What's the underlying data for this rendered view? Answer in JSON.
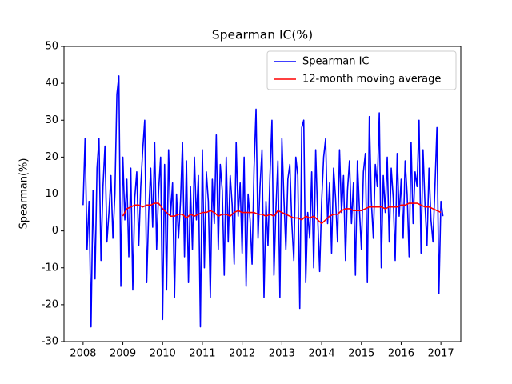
{
  "chart_data": {
    "type": "line",
    "title": "Spearman IC(%)",
    "y_label": "Spearman(%)",
    "xlim": [
      2007.52,
      2017.5
    ],
    "xticks": [
      2008,
      2009,
      2010,
      2011,
      2012,
      2013,
      2014,
      2015,
      2016,
      2017
    ],
    "ylim": [
      -30,
      50
    ],
    "yticks": [
      -30,
      -20,
      -10,
      0,
      10,
      20,
      30,
      40,
      50
    ],
    "grid": false,
    "legend": "upper right",
    "series": [
      {
        "name": "Spearman IC",
        "color": "#0000ff",
        "x": [
          2008.0,
          2008.05,
          2008.1,
          2008.15,
          2008.2,
          2008.25,
          2008.3,
          2008.35,
          2008.4,
          2008.45,
          2008.5,
          2008.55,
          2008.6,
          2008.65,
          2008.7,
          2008.75,
          2008.8,
          2008.85,
          2008.9,
          2008.95,
          2009.0,
          2009.05,
          2009.1,
          2009.15,
          2009.2,
          2009.25,
          2009.3,
          2009.35,
          2009.4,
          2009.45,
          2009.5,
          2009.55,
          2009.6,
          2009.65,
          2009.7,
          2009.75,
          2009.8,
          2009.85,
          2009.9,
          2009.95,
          2010.0,
          2010.05,
          2010.1,
          2010.15,
          2010.2,
          2010.25,
          2010.3,
          2010.35,
          2010.4,
          2010.45,
          2010.5,
          2010.55,
          2010.6,
          2010.65,
          2010.7,
          2010.75,
          2010.8,
          2010.85,
          2010.9,
          2010.95,
          2011.0,
          2011.05,
          2011.1,
          2011.15,
          2011.2,
          2011.25,
          2011.3,
          2011.35,
          2011.4,
          2011.45,
          2011.5,
          2011.55,
          2011.6,
          2011.65,
          2011.7,
          2011.75,
          2011.8,
          2011.85,
          2011.9,
          2011.95,
          2012.0,
          2012.05,
          2012.1,
          2012.15,
          2012.2,
          2012.25,
          2012.3,
          2012.35,
          2012.4,
          2012.45,
          2012.5,
          2012.55,
          2012.6,
          2012.65,
          2012.7,
          2012.75,
          2012.8,
          2012.85,
          2012.9,
          2012.95,
          2013.0,
          2013.05,
          2013.1,
          2013.15,
          2013.2,
          2013.25,
          2013.3,
          2013.35,
          2013.4,
          2013.45,
          2013.5,
          2013.55,
          2013.6,
          2013.65,
          2013.7,
          2013.75,
          2013.8,
          2013.85,
          2013.9,
          2013.95,
          2014.0,
          2014.05,
          2014.1,
          2014.15,
          2014.2,
          2014.25,
          2014.3,
          2014.35,
          2014.4,
          2014.45,
          2014.5,
          2014.55,
          2014.6,
          2014.65,
          2014.7,
          2014.75,
          2014.8,
          2014.85,
          2014.9,
          2014.95,
          2015.0,
          2015.05,
          2015.1,
          2015.15,
          2015.2,
          2015.25,
          2015.3,
          2015.35,
          2015.4,
          2015.45,
          2015.5,
          2015.55,
          2015.6,
          2015.65,
          2015.7,
          2015.75,
          2015.8,
          2015.85,
          2015.9,
          2015.95,
          2016.0,
          2016.05,
          2016.1,
          2016.15,
          2016.2,
          2016.25,
          2016.3,
          2016.35,
          2016.4,
          2016.45,
          2016.5,
          2016.55,
          2016.6,
          2016.65,
          2016.7,
          2016.75,
          2016.8,
          2016.85,
          2016.9,
          2016.95,
          2017.0,
          2017.05
        ],
        "values": [
          7,
          25,
          -5,
          8,
          -26,
          11,
          -13,
          17,
          25,
          -8,
          12,
          23,
          -3,
          5,
          15,
          -2,
          10,
          37,
          42,
          -15,
          20,
          3,
          14,
          -7,
          17,
          -16,
          9,
          16,
          -4,
          12,
          22,
          30,
          -14,
          5,
          17,
          1,
          24,
          -5,
          11,
          20,
          -24,
          18,
          -16,
          22,
          4,
          13,
          -18,
          10,
          -2,
          8,
          24,
          -7,
          19,
          -14,
          12,
          -5,
          20,
          3,
          15,
          -26,
          22,
          -10,
          16,
          8,
          -18,
          14,
          2,
          26,
          -5,
          18,
          11,
          -12,
          20,
          -3,
          15,
          7,
          -9,
          24,
          4,
          13,
          -6,
          20,
          -15,
          10,
          3,
          -9,
          17,
          33,
          -2,
          12,
          22,
          -18,
          8,
          -4,
          15,
          30,
          -12,
          6,
          19,
          -18,
          25,
          9,
          -5,
          14,
          18,
          2,
          -8,
          20,
          15,
          -21,
          28,
          30,
          -14,
          5,
          -2,
          16,
          -10,
          22,
          4,
          -11,
          8,
          20,
          25,
          2,
          13,
          -6,
          17,
          9,
          -3,
          22,
          5,
          15,
          -8,
          11,
          19,
          2,
          13,
          -12,
          19,
          6,
          -5,
          16,
          21,
          -14,
          31,
          8,
          -2,
          18,
          12,
          32,
          -10,
          15,
          5,
          20,
          -3,
          17,
          9,
          -8,
          21,
          4,
          14,
          -2,
          19,
          10,
          -7,
          24,
          2,
          16,
          12,
          30,
          -6,
          22,
          7,
          -4,
          17,
          3,
          -3,
          12,
          28,
          -17,
          8,
          4
        ]
      },
      {
        "name": "12-month moving average",
        "color": "#ff0000",
        "x": [
          2009.0,
          2009.1,
          2009.2,
          2009.3,
          2009.4,
          2009.5,
          2009.6,
          2009.7,
          2009.8,
          2009.9,
          2010.0,
          2010.1,
          2010.2,
          2010.3,
          2010.4,
          2010.5,
          2010.6,
          2010.7,
          2010.8,
          2010.9,
          2011.0,
          2011.1,
          2011.2,
          2011.3,
          2011.4,
          2011.5,
          2011.6,
          2011.7,
          2011.8,
          2011.9,
          2012.0,
          2012.1,
          2012.2,
          2012.3,
          2012.4,
          2012.5,
          2012.6,
          2012.7,
          2012.8,
          2012.9,
          2013.0,
          2013.1,
          2013.2,
          2013.3,
          2013.4,
          2013.5,
          2013.6,
          2013.7,
          2013.8,
          2013.9,
          2014.0,
          2014.1,
          2014.2,
          2014.3,
          2014.4,
          2014.5,
          2014.6,
          2014.7,
          2014.8,
          2014.9,
          2015.0,
          2015.1,
          2015.2,
          2015.3,
          2015.4,
          2015.5,
          2015.6,
          2015.7,
          2015.8,
          2015.9,
          2016.0,
          2016.1,
          2016.2,
          2016.3,
          2016.4,
          2016.5,
          2016.6,
          2016.7,
          2016.8,
          2016.9,
          2017.0
        ],
        "values": [
          4,
          6,
          6.5,
          7,
          7,
          6.5,
          7,
          7,
          7.5,
          7.5,
          6,
          5,
          4,
          4,
          4.5,
          4.5,
          3.5,
          4.5,
          4,
          4.5,
          5,
          5,
          5.5,
          5,
          4,
          4.5,
          4.5,
          4,
          5,
          5.5,
          5,
          5,
          5,
          5,
          4.5,
          4.5,
          4,
          4.5,
          4,
          5.5,
          5,
          4.5,
          4,
          3.5,
          3.5,
          3,
          4,
          3.5,
          4,
          3,
          2,
          3,
          4,
          4.5,
          4.5,
          5.5,
          6,
          6,
          5.5,
          5.5,
          5.5,
          6,
          6.5,
          6.5,
          6.5,
          6.5,
          6,
          6.5,
          6.5,
          6.5,
          7,
          7,
          7.5,
          7.5,
          7.5,
          7,
          6.5,
          6.5,
          6,
          5.5,
          5
        ]
      }
    ]
  }
}
